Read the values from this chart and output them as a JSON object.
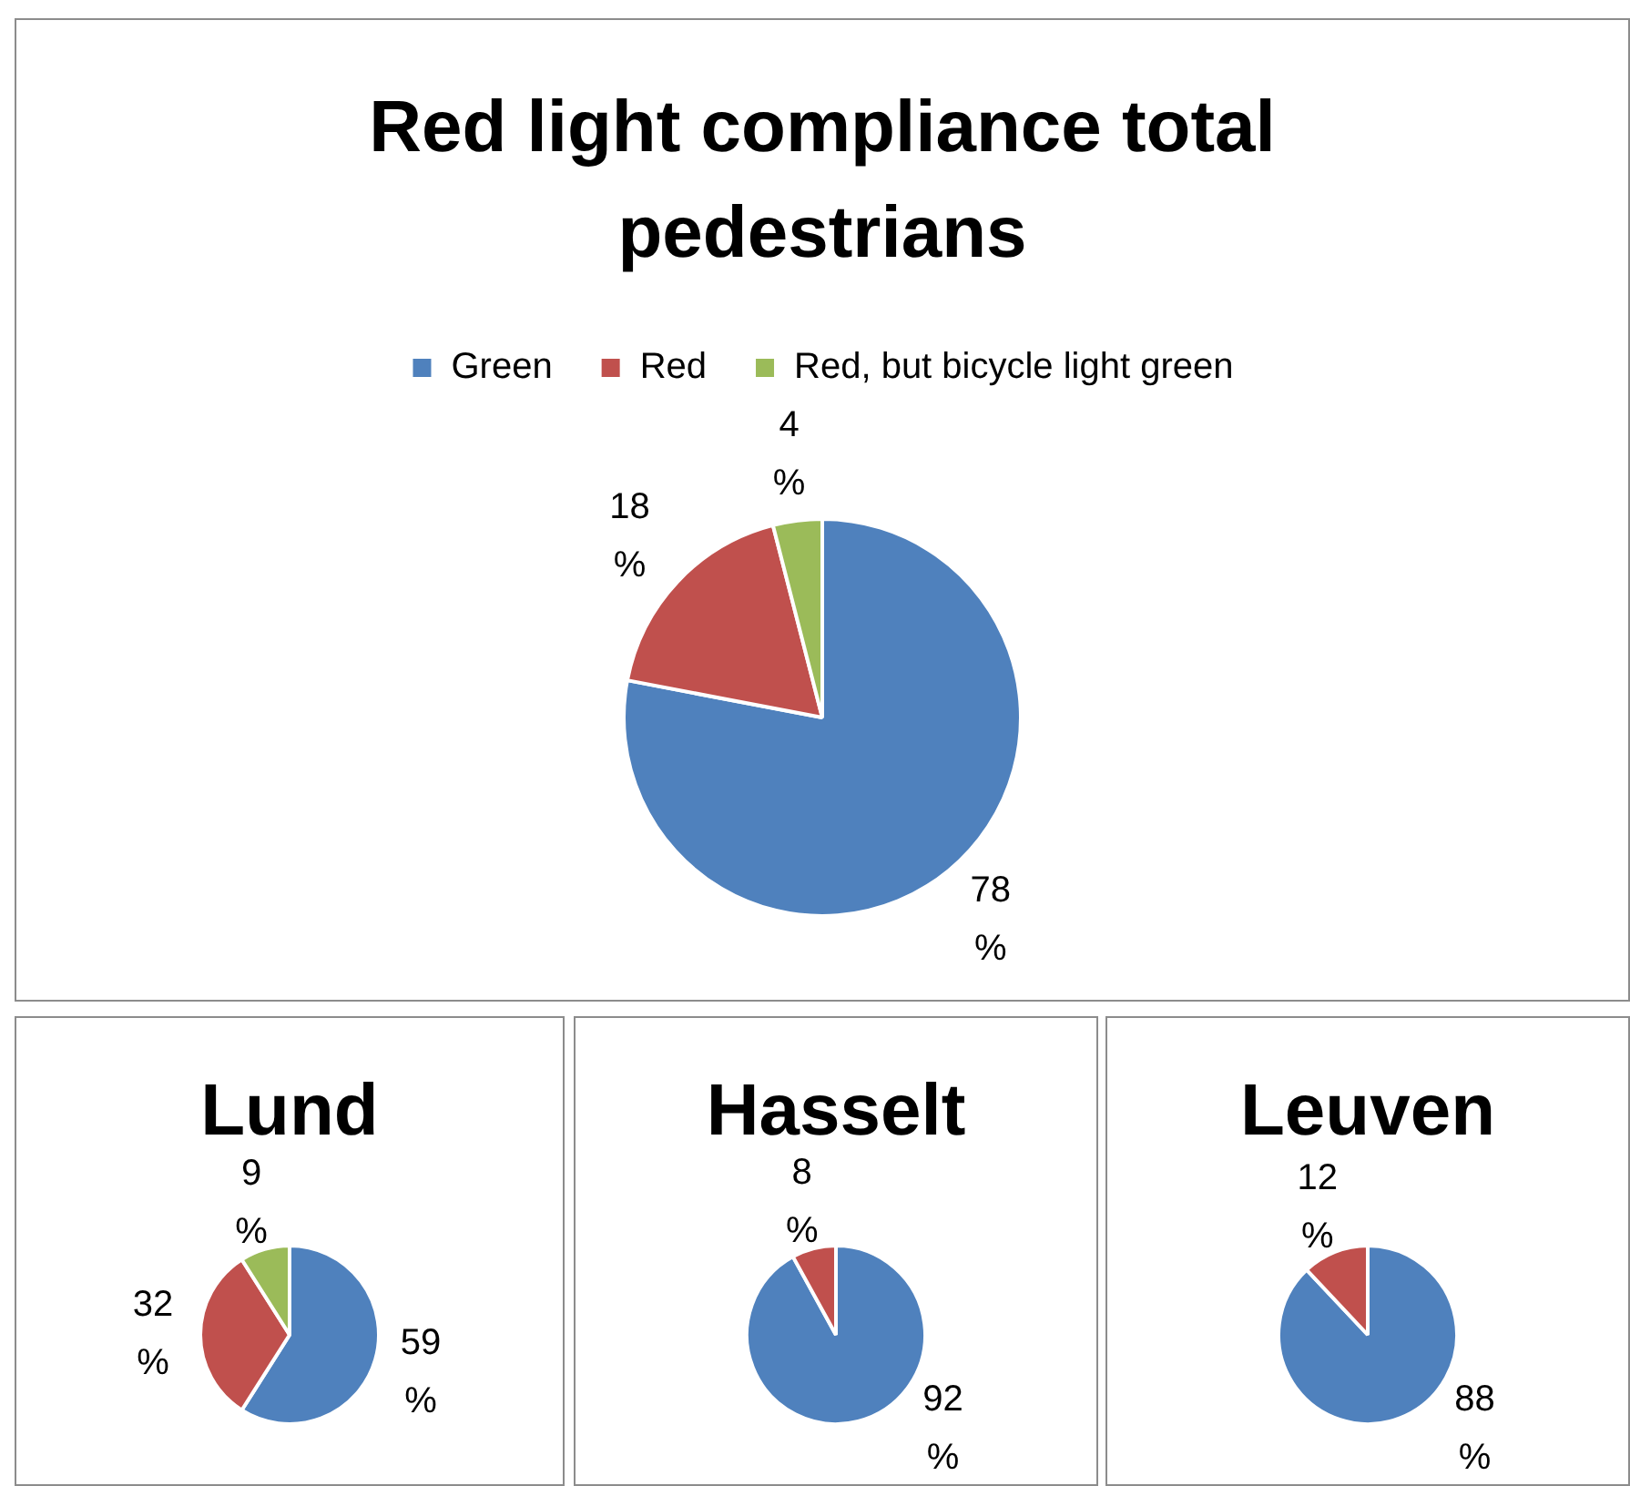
{
  "chart_data": [
    {
      "type": "pie",
      "title": "Red light compliance total pedestrians",
      "categories": [
        "Green",
        "Red",
        "Red, but bicycle light green"
      ],
      "values": [
        78,
        18,
        4
      ],
      "colors": [
        "#4f81bd",
        "#c0504d",
        "#9bbb59"
      ],
      "value_labels": [
        "78 %",
        "18 %",
        "4 %"
      ],
      "legend": "top"
    },
    {
      "type": "pie",
      "title": "Lund",
      "categories": [
        null,
        null,
        null
      ],
      "values": [
        59,
        32,
        9
      ],
      "colors": [
        "#4f81bd",
        "#c0504d",
        "#9bbb59"
      ],
      "value_labels": [
        "59 %",
        "32 %",
        "9 %"
      ]
    },
    {
      "type": "pie",
      "title": "Hasselt",
      "categories": [
        null,
        null
      ],
      "values": [
        92,
        8
      ],
      "colors": [
        "#4f81bd",
        "#c0504d"
      ],
      "value_labels": [
        "92 %",
        "8 %"
      ]
    },
    {
      "type": "pie",
      "title": "Leuven",
      "categories": [
        null,
        null
      ],
      "values": [
        88,
        12
      ],
      "colors": [
        "#4f81bd",
        "#c0504d"
      ],
      "value_labels": [
        "88 %",
        "12 %"
      ]
    }
  ]
}
